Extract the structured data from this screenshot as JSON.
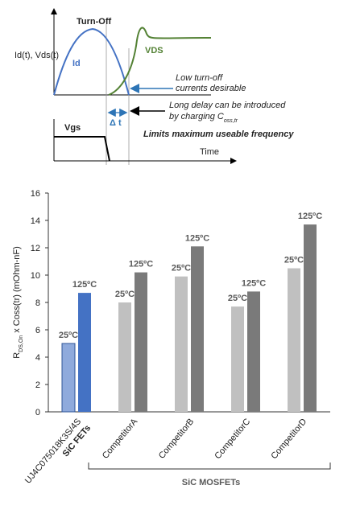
{
  "diagram": {
    "turn_off": "Turn-Off",
    "axis_label": "Id(t), Vds(t)",
    "id_label": "Id",
    "vds_label": "VDS",
    "note1": [
      "Low turn-off",
      "currents desirable"
    ],
    "note2": {
      "line1": "Long delay can be introduced",
      "line2": "by charging C",
      "line2_sub": "oss,tr"
    },
    "delta_t": "Δ t",
    "vgs_label": "Vgs",
    "limit_note": "Limits maximum useable frequency",
    "time_label": "Time"
  },
  "chart_data": {
    "type": "bar",
    "y_label": {
      "main": "R",
      "sub": "DS,On",
      "rest": " x Coss(tr)  (mOhm-nF)"
    },
    "categories": [
      "UJ4C075018K3S/4S",
      "CompetitorA",
      "CompetitorB",
      "CompetitorC",
      "CompetitorD"
    ],
    "category_note": "SiC FETs",
    "group_label": "SiC MOSFETs",
    "series": [
      {
        "name": "25ºC",
        "colors": [
          "#8faadc",
          "#c0c0c0",
          "#c0c0c0",
          "#c0c0c0",
          "#c0c0c0"
        ],
        "values": [
          5.0,
          8.0,
          9.9,
          7.7,
          10.5
        ]
      },
      {
        "name": "125ºC",
        "colors": [
          "#4472c4",
          "#7a7a7a",
          "#7a7a7a",
          "#7a7a7a",
          "#7a7a7a"
        ],
        "values": [
          8.7,
          10.2,
          12.1,
          8.8,
          13.7
        ]
      }
    ],
    "ylim": [
      0,
      16
    ],
    "yticks": [
      0,
      2,
      4,
      6,
      8,
      10,
      12,
      14,
      16
    ]
  }
}
